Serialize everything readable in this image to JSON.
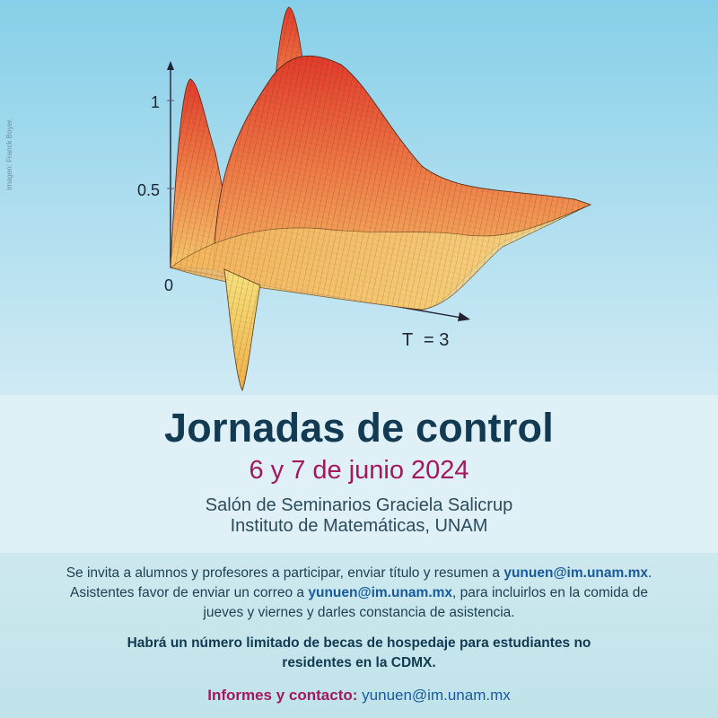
{
  "figure": {
    "credit": "Imagen: Franck Boyer.",
    "axis_labels": [
      "1",
      "0.5",
      "0"
    ],
    "time_label": "T",
    "time_eq": "= 3"
  },
  "event": {
    "title": "Jornadas de control",
    "dates": "6 y 7 de junio 2024",
    "venue_line1": "Salón de Seminarios Graciela Salicrup",
    "venue_line2": "Instituto de Matemáticas, UNAM"
  },
  "info": {
    "invite_line1_text": "Se invita a alumnos y profesores a participar, enviar título y resumen a ",
    "invite_line1_email": "yunuen@im.unam.mx",
    "invite_line1_end": ".",
    "invite_line2_text": "Asistentes favor de enviar un correo a ",
    "invite_line2_email": "yunuen@im.unam.mx",
    "invite_line2_end": ", para incluirlos en la comida de",
    "invite_line3": "jueves y viernes y darles constancia de asistencia.",
    "note_line1": "Habrá un número limitado de becas de hospedaje para estudiantes no",
    "note_line2": "residentes en la CDMX.",
    "contact_label": "Informes y contacto:",
    "contact_email": "yunuen@im.unam.mx"
  },
  "colors": {
    "title": "#123a52",
    "dates": "#a3185f",
    "email": "#1a5a9c",
    "surface_hot": "#e8432b",
    "surface_warm": "#f5c76a"
  }
}
